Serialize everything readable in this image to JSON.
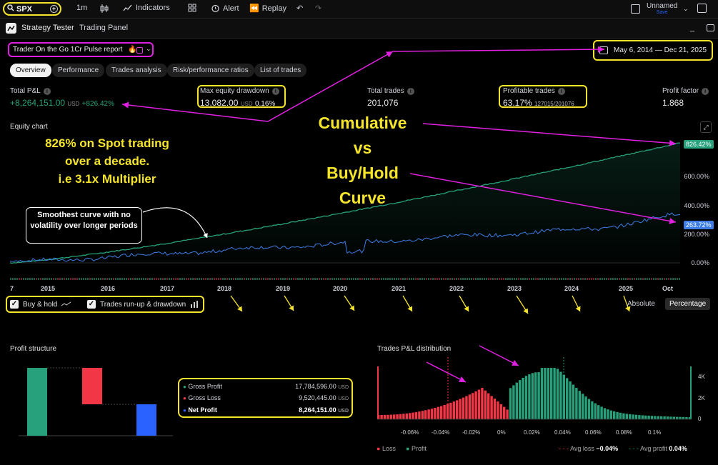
{
  "toolbar": {
    "symbol": "SPX",
    "interval": "1m",
    "indicators_label": "Indicators",
    "alert_label": "Alert",
    "replay_label": "Replay",
    "layout_name": "Unnamed",
    "layout_status": "Save"
  },
  "panel": {
    "tabs": [
      "Strategy Tester",
      "Trading Panel"
    ]
  },
  "strategy": {
    "name": "Trader On the Go 1Cr Pulse report",
    "date_range": "May 6, 2014 — Dec 21, 2025"
  },
  "subtabs": [
    "Overview",
    "Performance",
    "Trades analysis",
    "Risk/performance ratios",
    "List of trades"
  ],
  "stats": {
    "total_pnl": {
      "label": "Total P&L",
      "value": "+8,264,151.00",
      "unit": "USD",
      "pct": "+826.42%"
    },
    "max_drawdown": {
      "label": "Max equity drawdown",
      "value": "13,082.00",
      "unit": "USD",
      "pct": "0.16%"
    },
    "total_trades": {
      "label": "Total trades",
      "value": "201,076"
    },
    "profitable_trades": {
      "label": "Profitable trades",
      "value": "63.17%",
      "detail": "127015/201076"
    },
    "profit_factor": {
      "label": "Profit factor",
      "value": "1.868"
    }
  },
  "equity_chart": {
    "title": "Equity chart",
    "cumulative_end_label": "826.42%",
    "buyhold_end_label": "263.72%",
    "y_ticks": [
      "600.00%",
      "400.00%",
      "200.00%",
      "0.00%"
    ],
    "x_ticks": [
      "7",
      "2015",
      "2016",
      "2017",
      "2018",
      "2019",
      "2020",
      "2021",
      "2022",
      "2023",
      "2024",
      "2025",
      "Oct"
    ],
    "colors": {
      "cumulative": "#26a17b",
      "buyhold": "#3d7ce6"
    }
  },
  "annotations": {
    "note1_l1": "826% on Spot trading",
    "note1_l2": "over a decade.",
    "note1_l3": "i.e 3.1x Multiplier",
    "bubble": "Smoothest curve with no volatility over longer periods",
    "big1": "Cumulative",
    "big2": "vs",
    "big3": "Buy/Hold",
    "big4": "Curve"
  },
  "chart_options": {
    "buy_hold": "Buy & hold",
    "runup": "Trades run-up & drawdown",
    "absolute": "Absolute",
    "percentage": "Percentage"
  },
  "profit_structure": {
    "title": "Profit structure",
    "legend": [
      {
        "label": "Gross Profit",
        "value": "17,784,596.00",
        "unit": "USD",
        "color": "#26a17b"
      },
      {
        "label": "Gross Loss",
        "value": "9,520,445.00",
        "unit": "USD",
        "color": "#f23645"
      },
      {
        "label": "Net Profit",
        "value": "8,264,151.00",
        "unit": "USD",
        "color": "#2962ff"
      }
    ]
  },
  "distribution": {
    "title": "Trades P&L distribution",
    "x_ticks": [
      "-0.06%",
      "-0.04%",
      "-0.02%",
      "0%",
      "0.02%",
      "0.04%",
      "0.06%",
      "0.08%",
      "0.1%"
    ],
    "y_ticks": [
      "4K",
      "2K",
      "0"
    ],
    "legend_loss": "Loss",
    "legend_profit": "Profit",
    "avg_loss_label": "Avg loss",
    "avg_loss_value": "−0.04%",
    "avg_profit_label": "Avg profit",
    "avg_profit_value": "0.04%",
    "colors": {
      "loss": "#f23645",
      "profit": "#26a17b"
    }
  }
}
